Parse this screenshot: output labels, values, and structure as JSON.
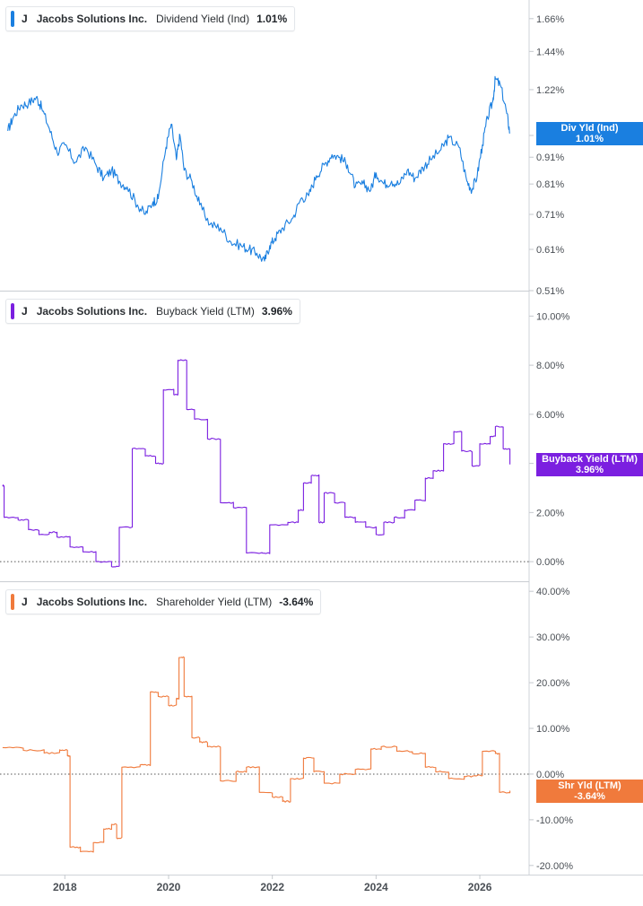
{
  "chart_data": [
    {
      "type": "line",
      "ticker": "J",
      "company": "Jacobs Solutions Inc.",
      "metric": "Dividend Yield (Ind)",
      "latest_value": "1.01%",
      "tag_label": "Div Yld (Ind)",
      "tag_value": "1.01%",
      "color": "#1a7fe0",
      "scale": "log",
      "ylim": [
        0.51,
        1.8
      ],
      "y_ticks": [
        1.66,
        1.44,
        1.22,
        1.0,
        0.91,
        0.81,
        0.71,
        0.61,
        0.51
      ],
      "y_tick_labels": [
        "1.66%",
        "1.44%",
        "1.22%",
        "",
        "0.91%",
        "0.81%",
        "0.71%",
        "0.61%",
        "0.51%"
      ],
      "zero_line": false,
      "series": [
        {
          "x": [
            2016.9,
            2017.0,
            2017.15,
            2017.3,
            2017.45,
            2017.55,
            2017.7,
            2017.85,
            2018.0,
            2018.2,
            2018.4,
            2018.6,
            2018.75,
            2018.9,
            2019.05,
            2019.2,
            2019.4,
            2019.55,
            2019.7,
            2019.8,
            2019.95,
            2020.05,
            2020.15,
            2020.22,
            2020.3,
            2020.45,
            2020.6,
            2020.8,
            2021.0,
            2021.2,
            2021.4,
            2021.55,
            2021.7,
            2021.85,
            2021.95,
            2022.05,
            2022.2,
            2022.4,
            2022.55,
            2022.7,
            2022.85,
            2023.0,
            2023.15,
            2023.3,
            2023.45,
            2023.6,
            2023.75,
            2023.9,
            2024.0,
            2024.15,
            2024.3,
            2024.45,
            2024.6,
            2024.75,
            2024.9,
            2025.05,
            2025.25,
            2025.4,
            2025.6,
            2025.75,
            2025.85,
            2025.95,
            2026.05,
            2026.15,
            2026.25,
            2026.3,
            2026.4,
            2026.52,
            2026.58
          ],
          "y": [
            1.02,
            1.08,
            1.14,
            1.15,
            1.18,
            1.13,
            1.03,
            0.93,
            0.96,
            0.89,
            0.95,
            0.88,
            0.83,
            0.86,
            0.82,
            0.8,
            0.74,
            0.71,
            0.75,
            0.76,
            0.95,
            1.05,
            0.9,
            1.0,
            0.86,
            0.82,
            0.74,
            0.68,
            0.67,
            0.63,
            0.62,
            0.61,
            0.6,
            0.58,
            0.62,
            0.64,
            0.67,
            0.7,
            0.76,
            0.77,
            0.84,
            0.88,
            0.92,
            0.91,
            0.88,
            0.8,
            0.81,
            0.79,
            0.85,
            0.81,
            0.82,
            0.81,
            0.86,
            0.83,
            0.87,
            0.9,
            0.94,
            0.99,
            0.95,
            0.82,
            0.79,
            0.84,
            0.96,
            1.08,
            1.16,
            1.28,
            1.24,
            1.1,
            1.01
          ]
        }
      ]
    },
    {
      "type": "line",
      "ticker": "J",
      "company": "Jacobs Solutions Inc.",
      "metric": "Buyback Yield (LTM)",
      "latest_value": "3.96%",
      "tag_label": "Buyback Yield (LTM)",
      "tag_value": "3.96%",
      "color": "#7b1fe0",
      "scale": "linear",
      "ylim": [
        -0.8,
        11.0
      ],
      "y_ticks": [
        10,
        8,
        6,
        4,
        2,
        0
      ],
      "y_tick_labels": [
        "10.00%",
        "8.00%",
        "6.00%",
        "",
        "2.00%",
        "0.00%"
      ],
      "zero_line": true,
      "series": [
        {
          "step": true,
          "x": [
            2016.8,
            2016.83,
            2017.1,
            2017.3,
            2017.5,
            2017.7,
            2017.85,
            2018.1,
            2018.35,
            2018.6,
            2018.9,
            2019.05,
            2019.3,
            2019.55,
            2019.75,
            2019.9,
            2020.1,
            2020.18,
            2020.35,
            2020.5,
            2020.75,
            2021.0,
            2021.25,
            2021.5,
            2021.8,
            2021.95,
            2022.3,
            2022.5,
            2022.6,
            2022.75,
            2022.9,
            2023.0,
            2023.2,
            2023.4,
            2023.6,
            2023.8,
            2024.0,
            2024.15,
            2024.35,
            2024.55,
            2024.75,
            2024.95,
            2025.1,
            2025.3,
            2025.5,
            2025.65,
            2025.85,
            2026.0,
            2026.2,
            2026.3,
            2026.45,
            2026.58
          ],
          "y": [
            3.1,
            1.8,
            1.7,
            1.3,
            1.1,
            1.2,
            1.0,
            0.6,
            0.4,
            0.0,
            -0.2,
            1.4,
            4.6,
            4.3,
            4.0,
            7.0,
            6.8,
            8.2,
            6.2,
            5.8,
            5.0,
            2.4,
            2.2,
            0.35,
            0.35,
            1.5,
            1.6,
            2.1,
            3.2,
            3.5,
            1.6,
            2.8,
            2.4,
            1.8,
            1.6,
            1.4,
            1.1,
            1.6,
            1.8,
            2.1,
            2.5,
            3.4,
            3.7,
            4.8,
            5.3,
            4.5,
            3.9,
            4.8,
            5.1,
            5.5,
            4.6,
            3.96
          ]
        }
      ]
    },
    {
      "type": "line",
      "ticker": "J",
      "company": "Jacobs Solutions Inc.",
      "metric": "Shareholder Yield (LTM)",
      "latest_value": "-3.64%",
      "tag_label": "Shr Yld (LTM)",
      "tag_value": "-3.64%",
      "color": "#f07a3c",
      "scale": "linear",
      "ylim": [
        -22.0,
        42.0
      ],
      "y_ticks": [
        40,
        30,
        20,
        10,
        0,
        -10,
        -20
      ],
      "y_tick_labels": [
        "40.00%",
        "30.00%",
        "20.00%",
        "10.00%",
        "0.00%",
        "-10.00%",
        "-20.00%"
      ],
      "zero_line": true,
      "series": [
        {
          "step": true,
          "x": [
            2016.8,
            2017.2,
            2017.6,
            2017.9,
            2018.05,
            2018.1,
            2018.3,
            2018.55,
            2018.75,
            2018.9,
            2019.0,
            2019.1,
            2019.45,
            2019.65,
            2019.8,
            2020.0,
            2020.15,
            2020.2,
            2020.3,
            2020.45,
            2020.6,
            2020.75,
            2021.0,
            2021.3,
            2021.5,
            2021.75,
            2022.0,
            2022.2,
            2022.35,
            2022.6,
            2022.8,
            2023.0,
            2023.3,
            2023.6,
            2023.9,
            2024.1,
            2024.4,
            2024.7,
            2024.95,
            2025.15,
            2025.4,
            2025.7,
            2025.9,
            2026.05,
            2026.3,
            2026.38,
            2026.58
          ],
          "y": [
            5.8,
            5.2,
            4.6,
            5.3,
            4.0,
            -16.0,
            -17.0,
            -15.0,
            -12.0,
            -11.0,
            -14.0,
            1.5,
            2.0,
            18.0,
            17.0,
            15.0,
            16.5,
            25.5,
            17.0,
            8.0,
            7.0,
            6.0,
            -1.5,
            0.5,
            1.5,
            -4.0,
            -5.0,
            -6.0,
            -1.0,
            3.5,
            0.5,
            -2.0,
            0.0,
            1.0,
            5.5,
            6.0,
            5.0,
            4.5,
            1.5,
            0.5,
            -1.0,
            -0.5,
            -0.3,
            5.0,
            4.5,
            -4.0,
            -3.64
          ]
        }
      ]
    }
  ],
  "x_axis": {
    "range": [
      2016.75,
      2026.95
    ],
    "ticks": [
      2018,
      2020,
      2022,
      2024,
      2026
    ],
    "tick_labels": [
      "2018",
      "2020",
      "2022",
      "2024",
      "2026"
    ]
  }
}
